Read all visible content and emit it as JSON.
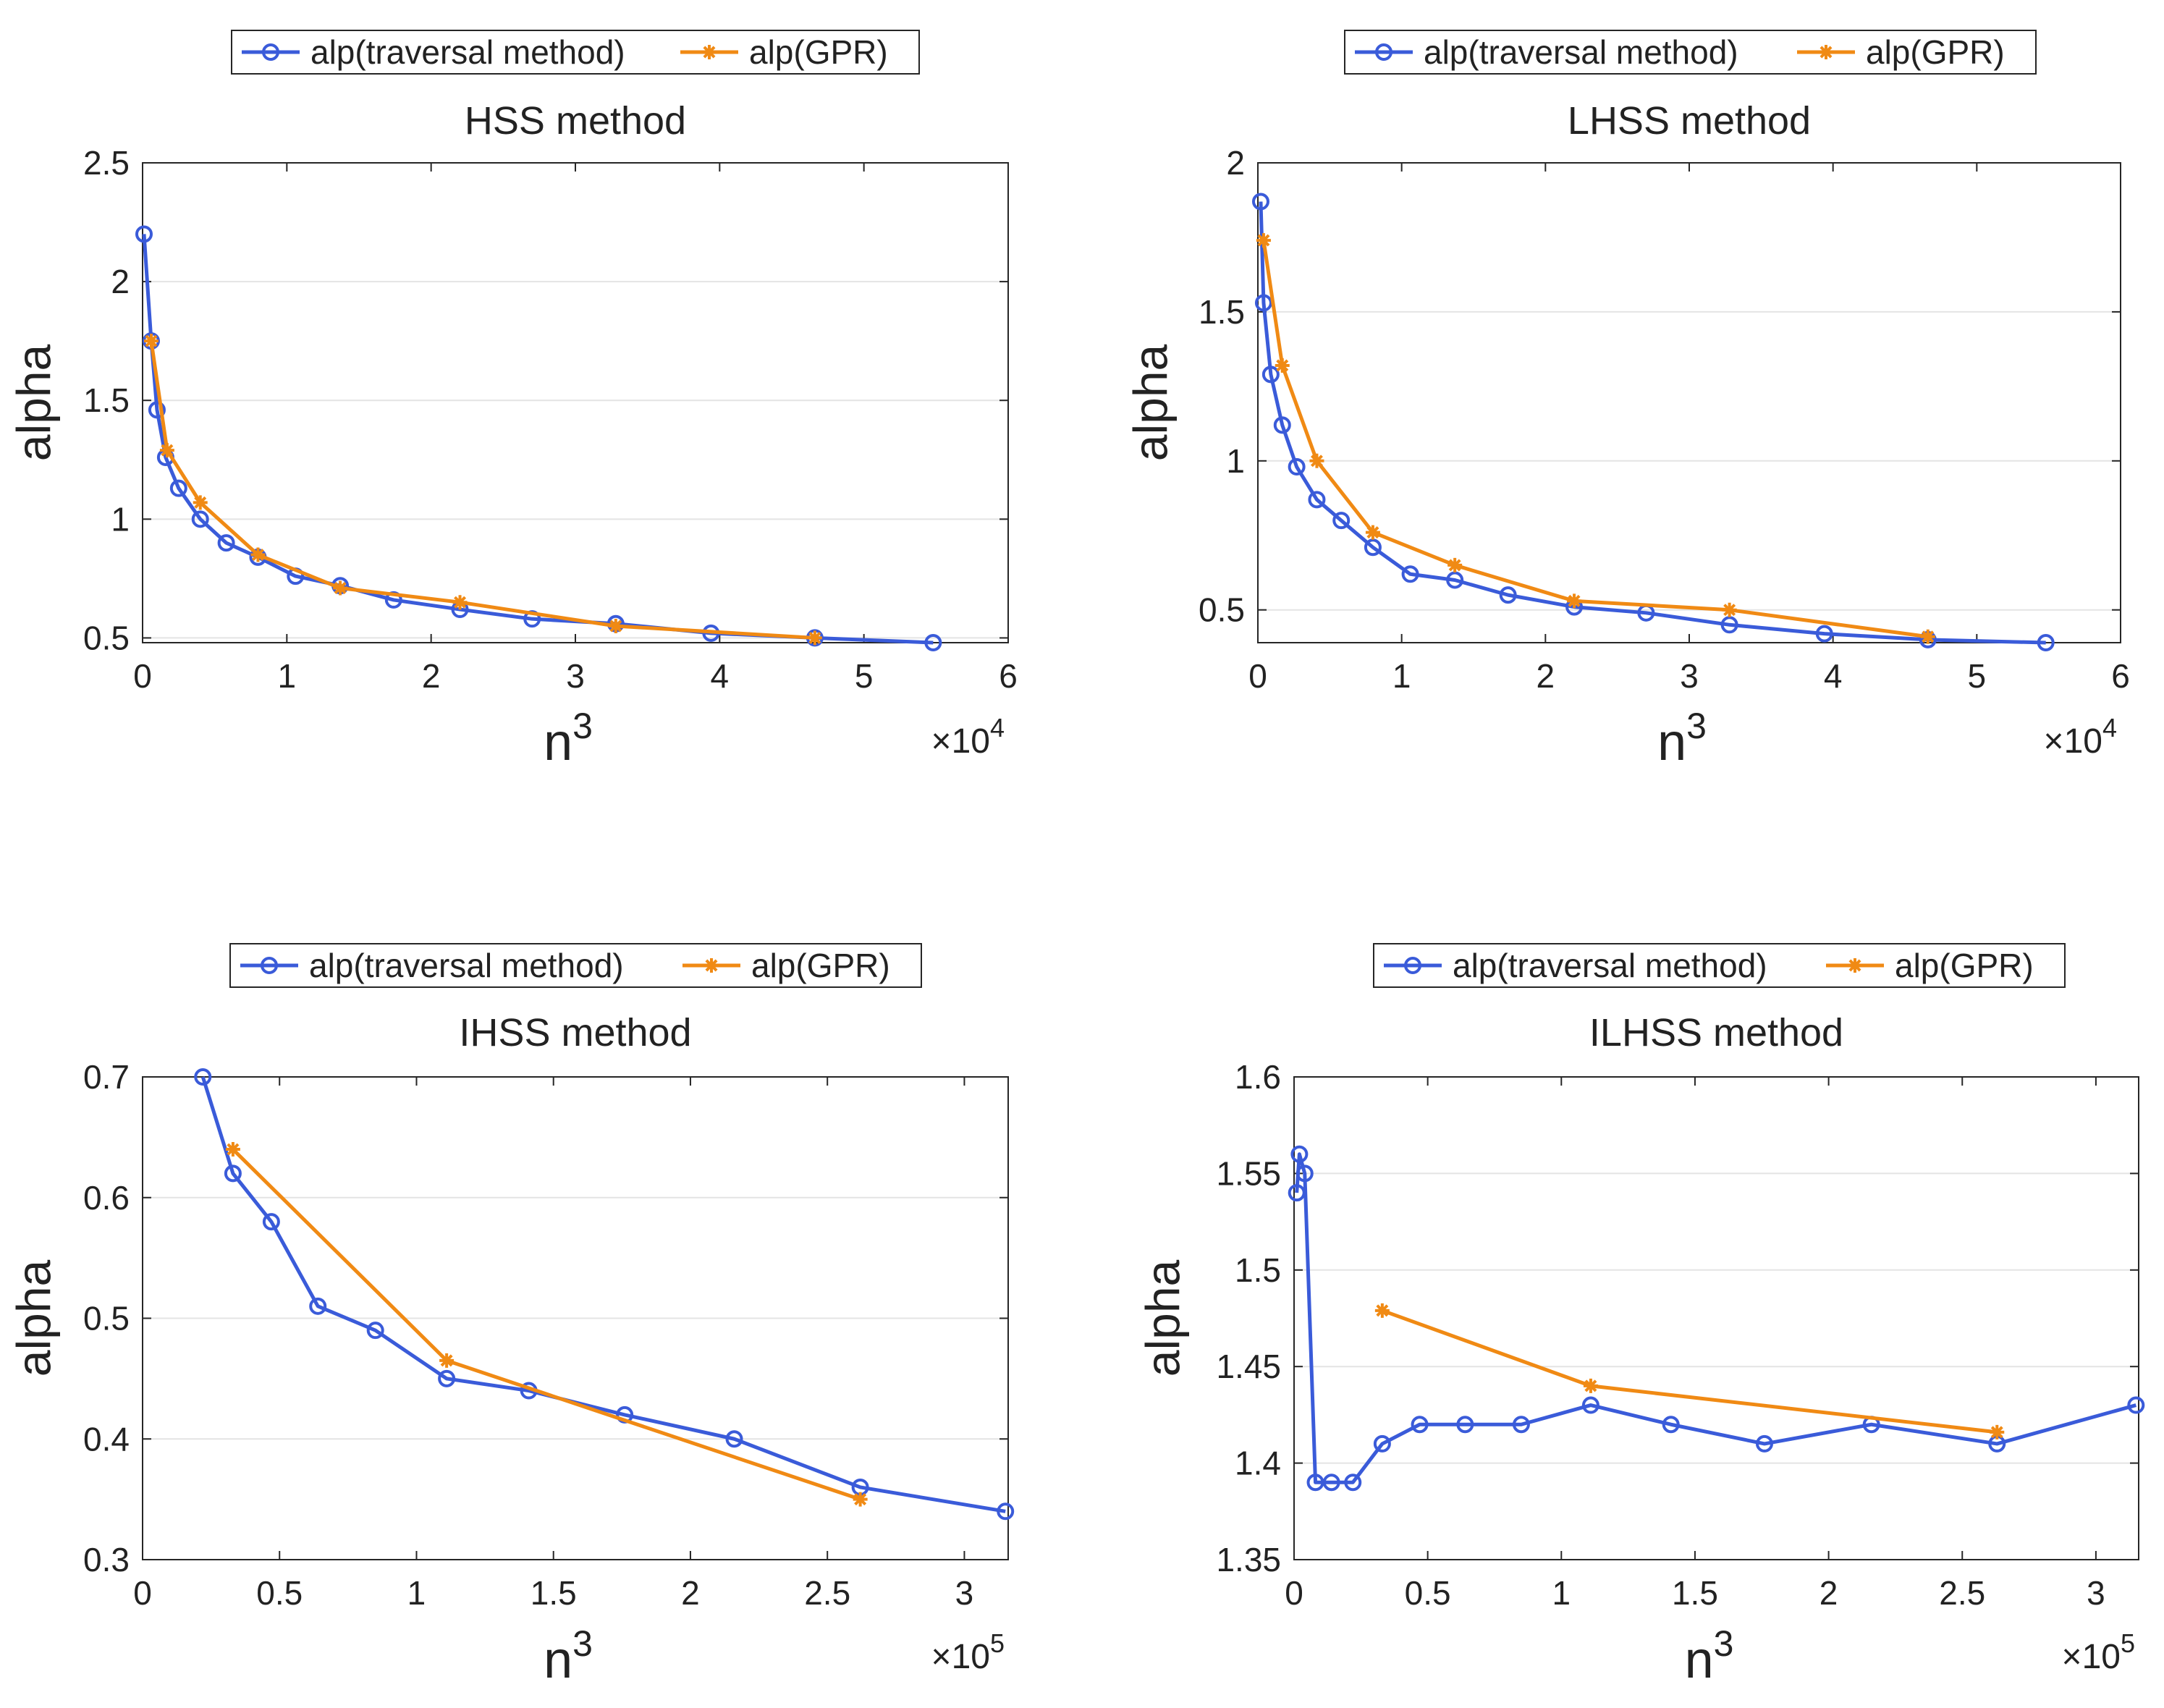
{
  "figure": {
    "layout": "2x2 grid"
  },
  "chart_data": [
    {
      "type": "line",
      "title": "HSS method",
      "xlabel": "n",
      "xlabel_superscript": "3",
      "ylabel": "alpha",
      "x_exponent_label": "×10",
      "x_exponent_power": "4",
      "xlim": [
        0,
        6
      ],
      "ylim": [
        0.48,
        2.5
      ],
      "xticks": [
        0,
        1,
        2,
        3,
        4,
        5,
        6
      ],
      "xtick_labels": [
        "0",
        "1",
        "2",
        "3",
        "4",
        "5",
        "6"
      ],
      "yticks": [
        0.5,
        1,
        1.5,
        2,
        2.5
      ],
      "ytick_labels": [
        "0.5",
        "1",
        "1.5",
        "2",
        "2.5"
      ],
      "grid": "horizontal",
      "legend_position": "top-center",
      "series": [
        {
          "name": "alp(traversal method)",
          "color": "#3a5bd9",
          "marker": "circle",
          "x": [
            0.01,
            0.06,
            0.1,
            0.16,
            0.25,
            0.4,
            0.58,
            0.8,
            1.06,
            1.37,
            1.74,
            2.2,
            2.7,
            3.28,
            3.94,
            4.66,
            5.48
          ],
          "y": [
            2.2,
            1.75,
            1.46,
            1.26,
            1.13,
            1.0,
            0.9,
            0.84,
            0.76,
            0.72,
            0.66,
            0.62,
            0.58,
            0.56,
            0.52,
            0.5,
            0.48
          ]
        },
        {
          "name": "alp(GPR)",
          "color": "#f08a14",
          "marker": "star",
          "x": [
            0.06,
            0.17,
            0.4,
            0.8,
            1.37,
            2.2,
            3.28,
            4.66
          ],
          "y": [
            1.75,
            1.29,
            1.07,
            0.85,
            0.71,
            0.65,
            0.55,
            0.5
          ]
        }
      ]
    },
    {
      "type": "line",
      "title": "LHSS method",
      "xlabel": "n",
      "xlabel_superscript": "3",
      "ylabel": "alpha",
      "x_exponent_label": "×10",
      "x_exponent_power": "4",
      "xlim": [
        0,
        6
      ],
      "ylim": [
        0.39,
        2.0
      ],
      "xticks": [
        0,
        1,
        2,
        3,
        4,
        5,
        6
      ],
      "xtick_labels": [
        "0",
        "1",
        "2",
        "3",
        "4",
        "5",
        "6"
      ],
      "yticks": [
        0.5,
        1,
        1.5,
        2
      ],
      "ytick_labels": [
        "0.5",
        "1",
        "1.5",
        "2"
      ],
      "grid": "horizontal",
      "legend_position": "top-center",
      "series": [
        {
          "name": "alp(traversal method)",
          "color": "#3a5bd9",
          "marker": "circle",
          "x": [
            0.02,
            0.04,
            0.09,
            0.17,
            0.27,
            0.41,
            0.58,
            0.8,
            1.06,
            1.37,
            1.74,
            2.2,
            2.7,
            3.28,
            3.94,
            4.66,
            5.48
          ],
          "y": [
            1.87,
            1.53,
            1.29,
            1.12,
            0.98,
            0.87,
            0.8,
            0.71,
            0.62,
            0.6,
            0.55,
            0.51,
            0.49,
            0.45,
            0.42,
            0.4,
            0.39
          ]
        },
        {
          "name": "alp(GPR)",
          "color": "#f08a14",
          "marker": "star",
          "x": [
            0.04,
            0.17,
            0.41,
            0.8,
            1.37,
            2.2,
            3.28,
            4.66
          ],
          "y": [
            1.74,
            1.32,
            1.0,
            0.76,
            0.65,
            0.53,
            0.5,
            0.41
          ]
        }
      ]
    },
    {
      "type": "line",
      "title": "IHSS method",
      "xlabel": "n",
      "xlabel_superscript": "3",
      "ylabel": "alpha",
      "x_exponent_label": "×10",
      "x_exponent_power": "5",
      "xlim": [
        0,
        3.16
      ],
      "ylim": [
        0.3,
        0.7
      ],
      "xticks": [
        0,
        0.5,
        1,
        1.5,
        2,
        2.5,
        3
      ],
      "xtick_labels": [
        "0",
        "0.5",
        "1",
        "1.5",
        "2",
        "2.5",
        "3"
      ],
      "yticks": [
        0.3,
        0.4,
        0.5,
        0.6,
        0.7
      ],
      "ytick_labels": [
        "0.3",
        "0.4",
        "0.5",
        "0.6",
        "0.7"
      ],
      "grid": "horizontal",
      "legend_position": "top-center",
      "series": [
        {
          "name": "alp(traversal method)",
          "color": "#3a5bd9",
          "marker": "circle",
          "x": [
            0.22,
            0.33,
            0.47,
            0.64,
            0.85,
            1.11,
            1.41,
            1.76,
            2.16,
            2.62,
            3.15
          ],
          "y": [
            0.7,
            0.62,
            0.58,
            0.51,
            0.49,
            0.45,
            0.44,
            0.42,
            0.4,
            0.36,
            0.34
          ]
        },
        {
          "name": "alp(GPR)",
          "color": "#f08a14",
          "marker": "star",
          "x": [
            0.33,
            1.11,
            2.62
          ],
          "y": [
            0.64,
            0.465,
            0.35
          ]
        }
      ]
    },
    {
      "type": "line",
      "title": "ILHSS method",
      "xlabel": "n",
      "xlabel_superscript": "3",
      "ylabel": "alpha",
      "x_exponent_label": "×10",
      "x_exponent_power": "5",
      "xlim": [
        0,
        3.16
      ],
      "ylim": [
        1.35,
        1.6
      ],
      "xticks": [
        0,
        0.5,
        1,
        1.5,
        2,
        2.5,
        3
      ],
      "xtick_labels": [
        "0",
        "0.5",
        "1",
        "1.5",
        "2",
        "2.5",
        "3"
      ],
      "yticks": [
        1.35,
        1.4,
        1.45,
        1.5,
        1.55,
        1.6
      ],
      "ytick_labels": [
        "1.35",
        "1.4",
        "1.45",
        "1.5",
        "1.55",
        "1.6"
      ],
      "grid": "horizontal",
      "legend_position": "top-center",
      "series": [
        {
          "name": "alp(traversal method)",
          "color": "#3a5bd9",
          "marker": "circle",
          "x": [
            0.01,
            0.02,
            0.04,
            0.08,
            0.14,
            0.22,
            0.33,
            0.47,
            0.64,
            0.85,
            1.11,
            1.41,
            1.76,
            2.16,
            2.63,
            3.15
          ],
          "y": [
            1.54,
            1.56,
            1.55,
            1.39,
            1.39,
            1.39,
            1.41,
            1.42,
            1.42,
            1.42,
            1.43,
            1.42,
            1.41,
            1.42,
            1.41,
            1.43
          ]
        },
        {
          "name": "alp(GPR)",
          "color": "#f08a14",
          "marker": "star",
          "x": [
            0.33,
            1.11,
            2.63
          ],
          "y": [
            1.479,
            1.44,
            1.416
          ]
        }
      ]
    }
  ]
}
